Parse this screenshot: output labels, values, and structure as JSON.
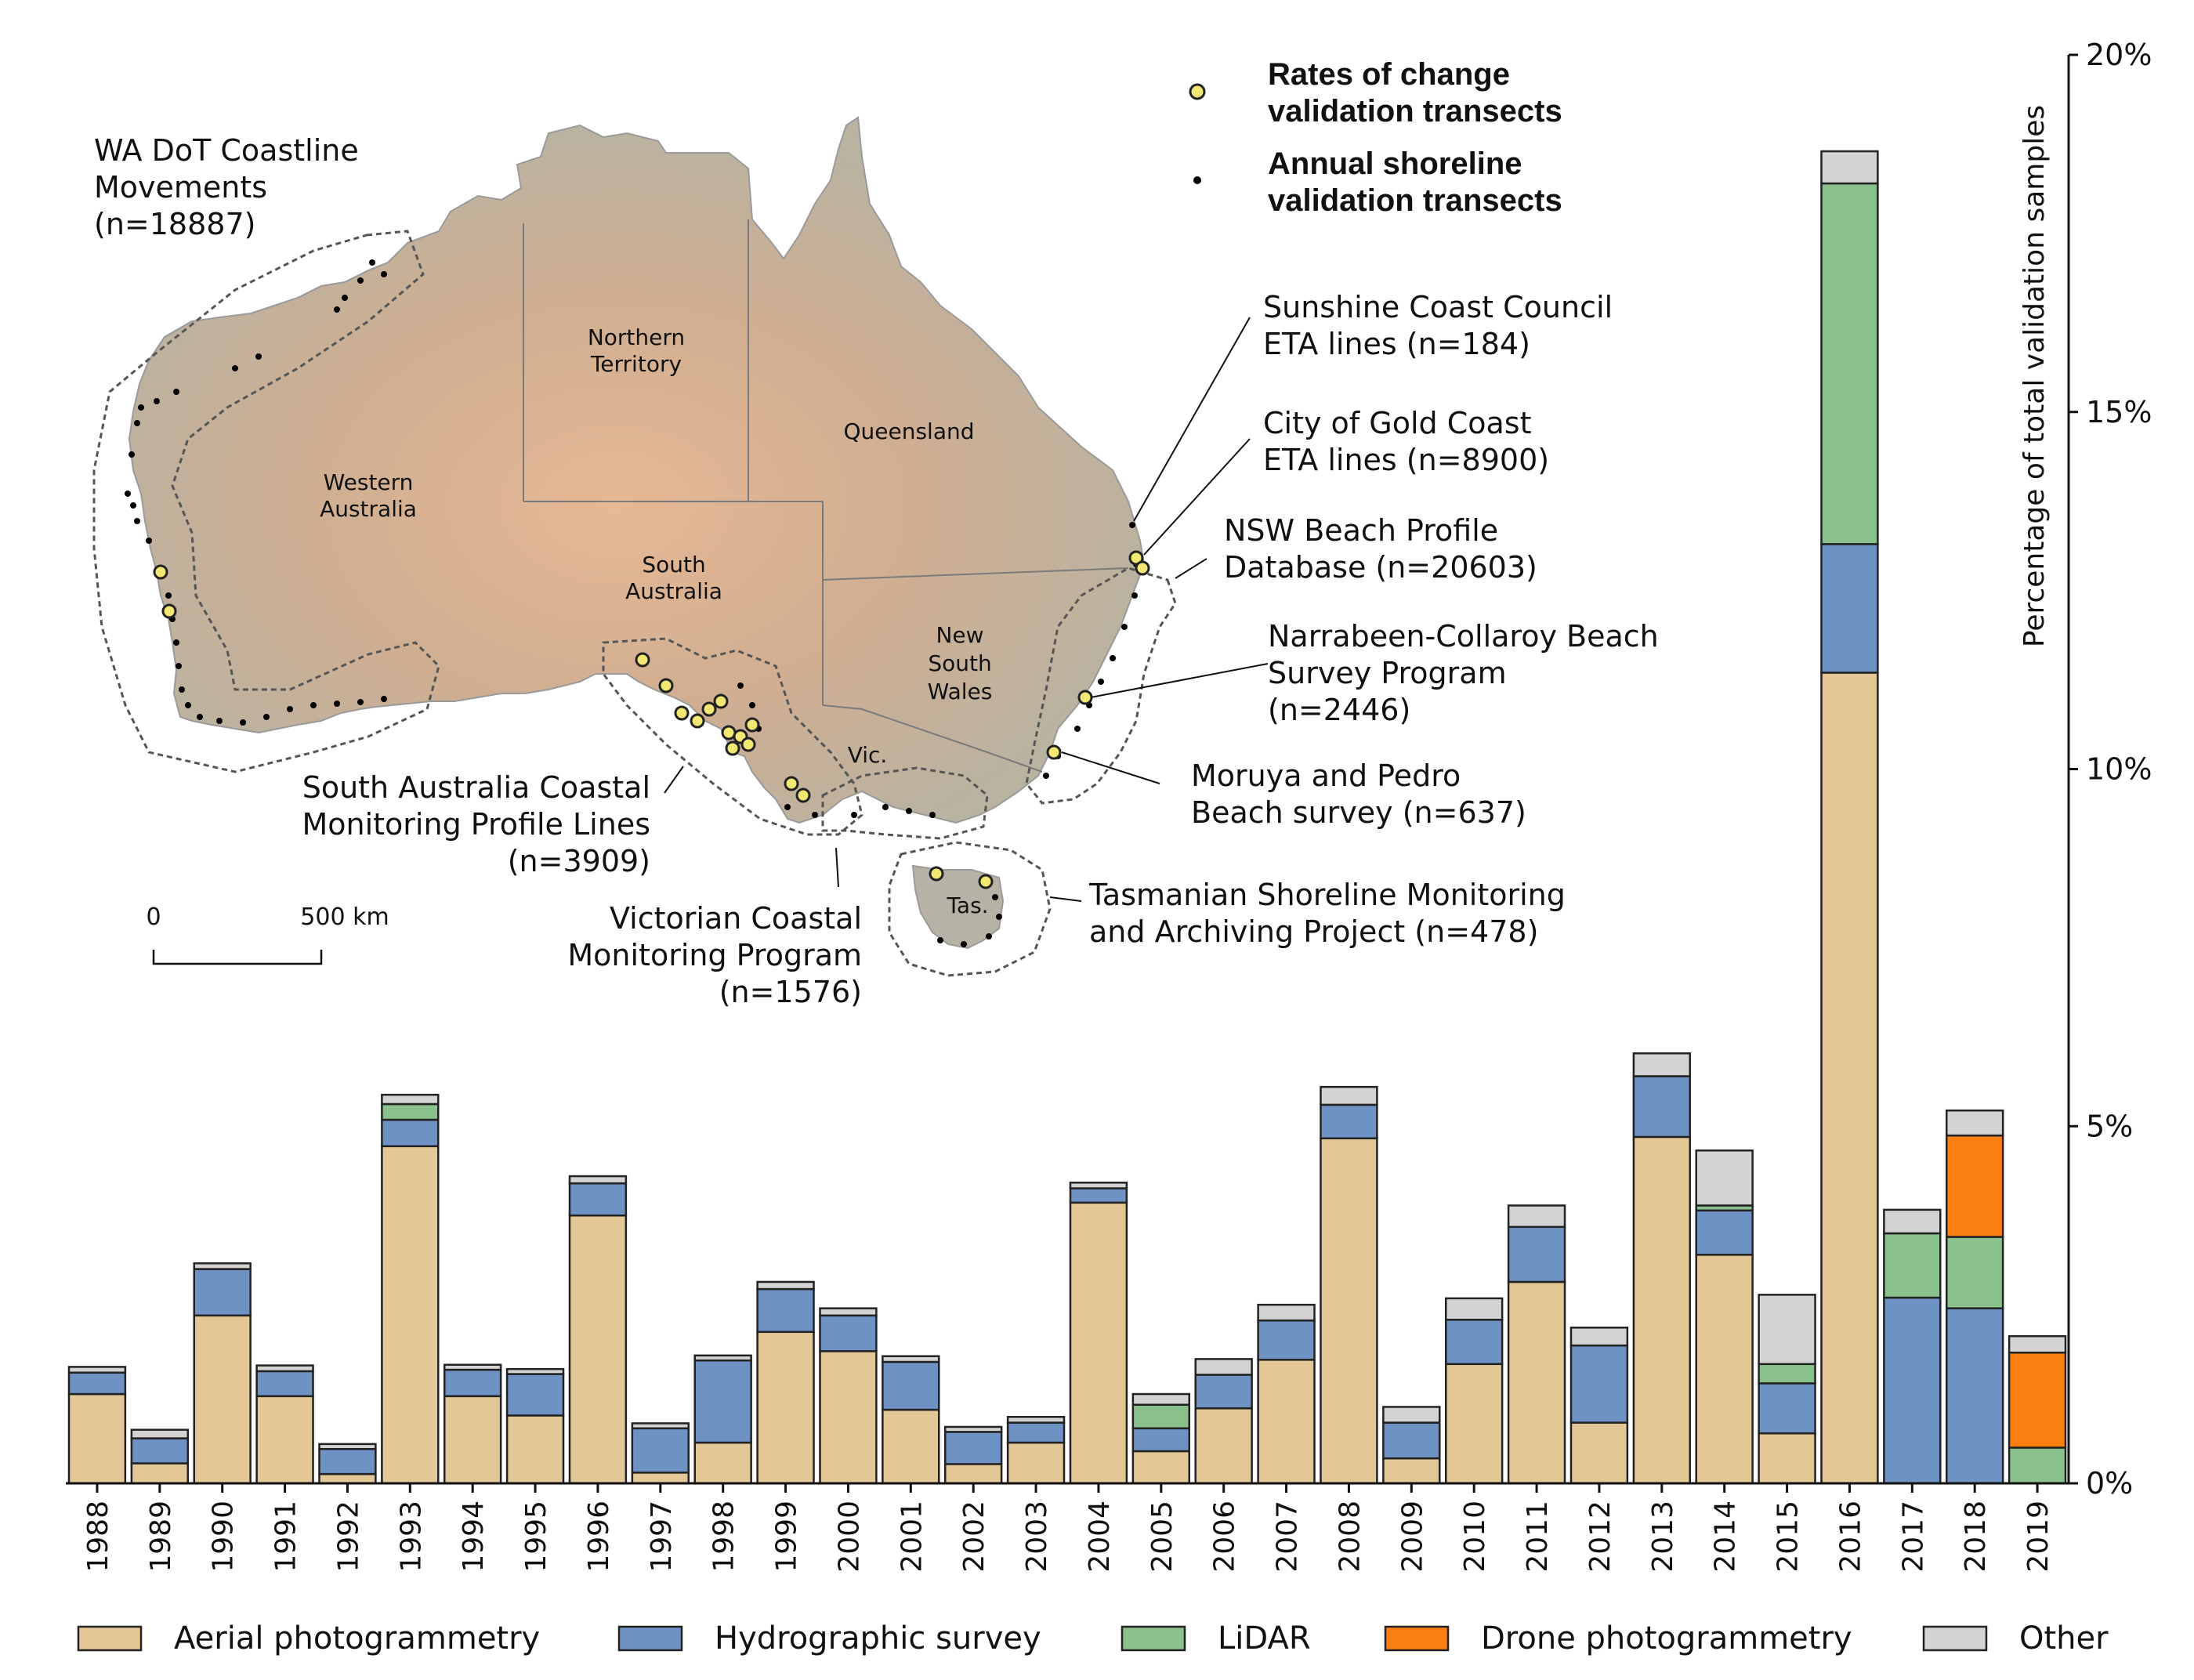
{
  "chart_data": {
    "type": "bar",
    "stacked": true,
    "categories": [
      "1988",
      "1989",
      "1990",
      "1991",
      "1992",
      "1993",
      "1994",
      "1995",
      "1996",
      "1997",
      "1998",
      "1999",
      "2000",
      "2001",
      "2002",
      "2003",
      "2004",
      "2005",
      "2006",
      "2007",
      "2008",
      "2009",
      "2010",
      "2011",
      "2012",
      "2013",
      "2014",
      "2015",
      "2016",
      "2017",
      "2018",
      "2019"
    ],
    "series": [
      {
        "name": "Aerial photogrammetry",
        "color": "#e3c796",
        "values": [
          1.25,
          0.28,
          2.35,
          1.22,
          0.13,
          4.72,
          1.22,
          0.95,
          3.75,
          0.15,
          0.57,
          2.12,
          1.85,
          1.03,
          0.27,
          0.57,
          3.93,
          0.45,
          1.05,
          1.73,
          4.83,
          0.35,
          1.67,
          2.82,
          0.85,
          4.85,
          3.2,
          0.7,
          11.35,
          0,
          0,
          0
        ]
      },
      {
        "name": "Hydrographic survey",
        "color": "#6f92c5",
        "values": [
          0.3,
          0.35,
          0.65,
          0.35,
          0.35,
          0.37,
          0.37,
          0.58,
          0.45,
          0.62,
          1.15,
          0.6,
          0.5,
          0.67,
          0.45,
          0.28,
          0.2,
          0.32,
          0.47,
          0.55,
          0.47,
          0.5,
          0.62,
          0.77,
          1.08,
          0.85,
          0.62,
          0.7,
          1.8,
          2.6,
          2.45,
          0
        ]
      },
      {
        "name": "LiDAR",
        "color": "#8ac08c",
        "values": [
          0,
          0,
          0,
          0,
          0,
          0.22,
          0,
          0,
          0,
          0,
          0,
          0,
          0,
          0,
          0,
          0,
          0,
          0.33,
          0,
          0,
          0,
          0,
          0,
          0,
          0,
          0,
          0.07,
          0.27,
          5.05,
          0.9,
          1.0,
          0.5
        ]
      },
      {
        "name": "Drone photogrammetry",
        "color": "#fb7f10",
        "values": [
          0,
          0,
          0,
          0,
          0,
          0,
          0,
          0,
          0,
          0,
          0,
          0,
          0,
          0,
          0,
          0,
          0,
          0,
          0,
          0,
          0,
          0,
          0,
          0,
          0,
          0,
          0,
          0,
          0,
          0,
          1.42,
          1.33
        ]
      },
      {
        "name": "Other",
        "color": "#d3d3d3",
        "values": [
          0.08,
          0.12,
          0.08,
          0.08,
          0.07,
          0.13,
          0.07,
          0.07,
          0.1,
          0.07,
          0.07,
          0.1,
          0.1,
          0.08,
          0.07,
          0.08,
          0.08,
          0.15,
          0.22,
          0.22,
          0.25,
          0.22,
          0.3,
          0.3,
          0.25,
          0.32,
          0.77,
          0.97,
          0.45,
          0.33,
          0.35,
          0.23
        ]
      }
    ],
    "ylabel": "Percentage of total validation samples",
    "ylim": [
      0,
      20
    ],
    "yticks": [
      "0%",
      "5%",
      "10%",
      "15%",
      "20%"
    ],
    "ytick_values": [
      0,
      5,
      10,
      15,
      20
    ],
    "y_axis_side": "right",
    "legend_position": "bottom"
  },
  "map": {
    "legend": {
      "rates": "Rates of change validation transects",
      "rates_lines": [
        "Rates of change",
        "validation transects"
      ],
      "annual_lines": [
        "Annual shoreline",
        "validation transects"
      ]
    },
    "regions": {
      "northern_territory": [
        "Northern",
        "Territory"
      ],
      "queensland": [
        "Queensland"
      ],
      "western_australia": [
        "Western",
        "Australia"
      ],
      "south_australia": [
        "South",
        "Australia"
      ],
      "new_south_wales": [
        "New",
        "South",
        "Wales"
      ],
      "victoria": [
        "Vic."
      ],
      "tasmania": [
        "Tas."
      ]
    },
    "scale_bar": {
      "start": "0",
      "end": "500 km"
    },
    "annotations": {
      "wa": [
        "WA DoT Coastline",
        "Movements",
        "(n=18887)"
      ],
      "sunshine": [
        "Sunshine Coast Council",
        "ETA lines (n=184)"
      ],
      "goldcoast": [
        "City of Gold Coast",
        "ETA lines (n=8900)"
      ],
      "nsw": [
        "NSW Beach Profile",
        "Database (n=20603)"
      ],
      "narrabeen": [
        "Narrabeen-Collaroy Beach",
        "Survey Program",
        "(n=2446)"
      ],
      "moruya": [
        "Moruya and Pedro",
        "Beach survey (n=637)"
      ],
      "sa": [
        "South Australia Coastal",
        "Monitoring Profile Lines",
        "(n=3909)"
      ],
      "vic": [
        "Victorian Coastal",
        "Monitoring Program",
        "(n=1576)"
      ],
      "tas": [
        "Tasmanian Shoreline Monitoring",
        "and Archiving Project (n=478)"
      ]
    }
  }
}
